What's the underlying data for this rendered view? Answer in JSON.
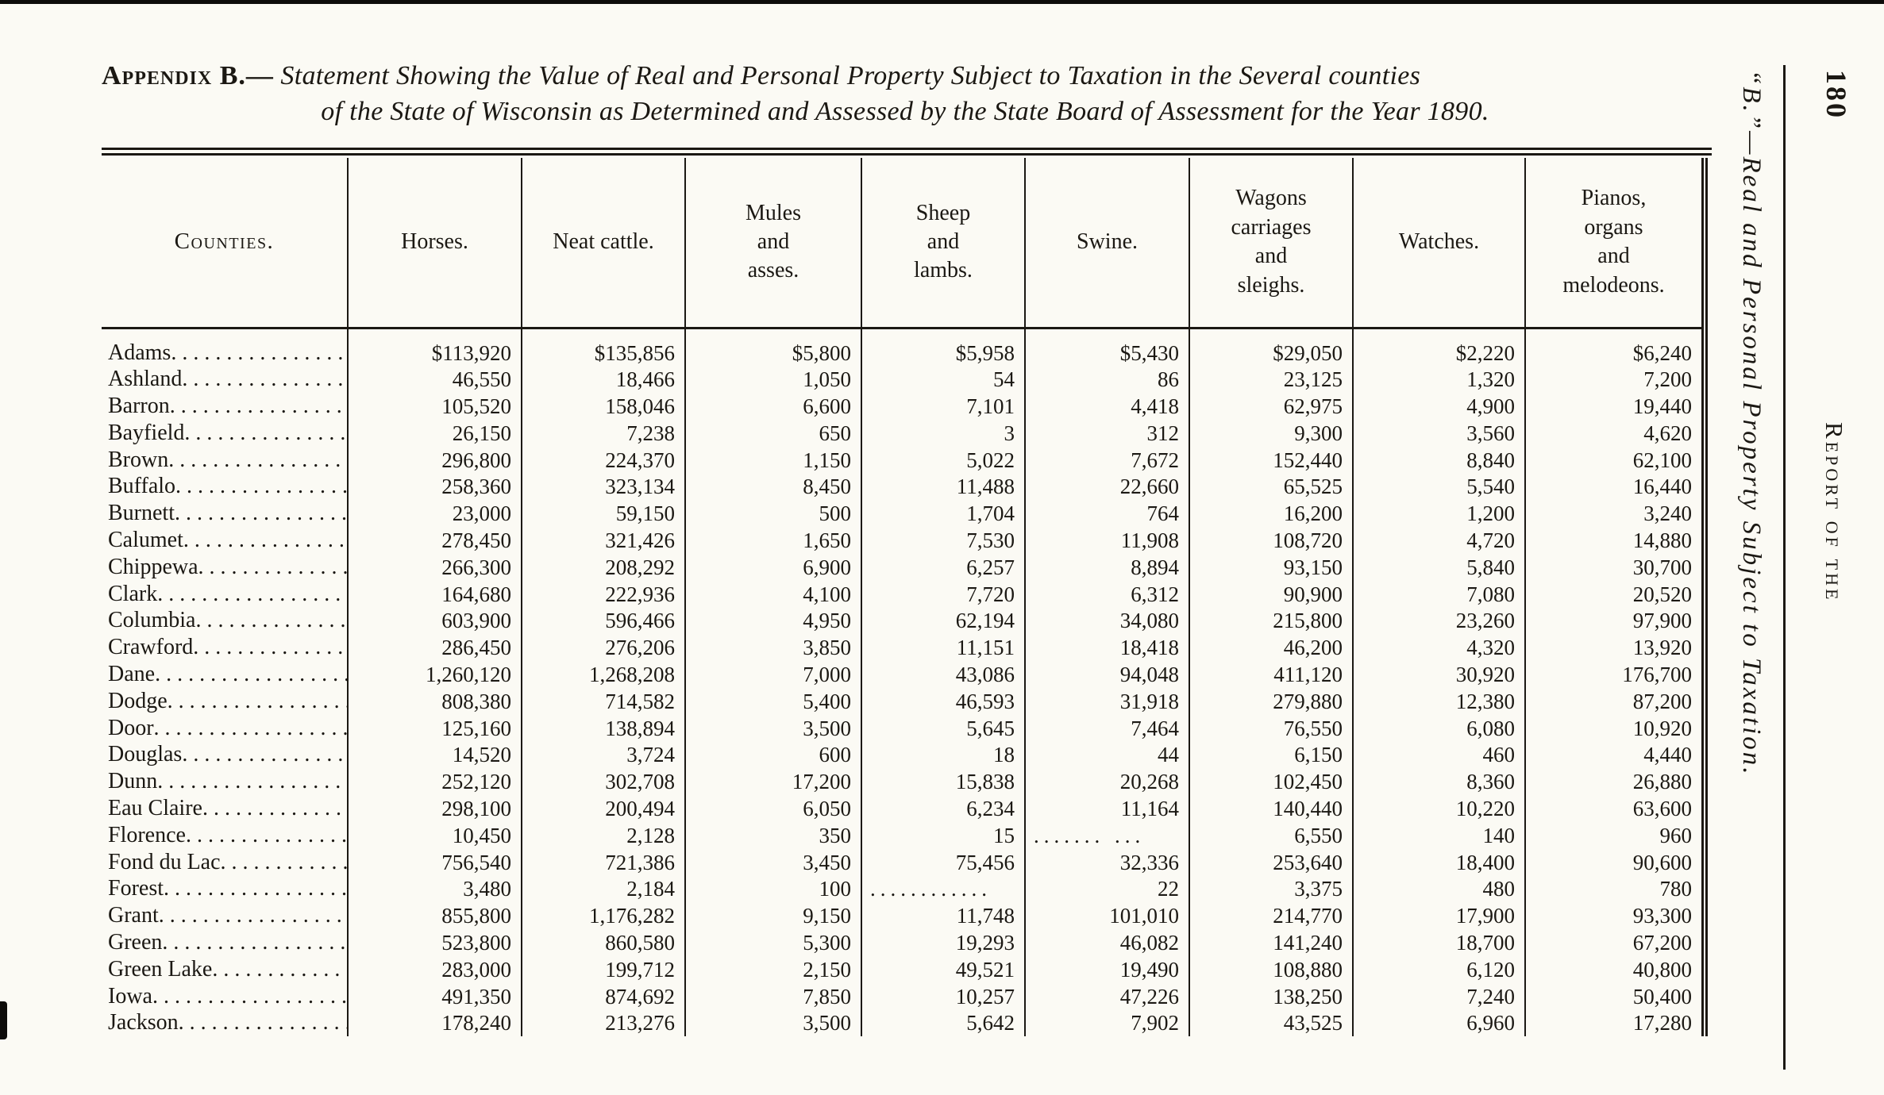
{
  "page_number": "180",
  "margins": {
    "side_title": "“B.”—Real and Personal Property Subject to Taxation.",
    "running_head": "Report of the"
  },
  "title": {
    "label": "Appendix B.—",
    "line1": "Statement Showing the Value of Real and Personal Property Subject to Taxation in the Several counties",
    "line2": "of the State of Wisconsin as Determined and Assessed by the State Board of Assessment for the Year 1890."
  },
  "table": {
    "headers": [
      "Counties.",
      "Horses.",
      "Neat cattle.",
      "Mules\nand\nasses.",
      "Sheep\nand\nlambs.",
      "Swine.",
      "Wagons\ncarriages\nand\nsleighs.",
      "Watches.",
      "Pianos,\norgans\nand\nmelodeons."
    ],
    "rows": [
      {
        "county": "Adams",
        "values": [
          "$113,920",
          "$135,856",
          "$5,800",
          "$5,958",
          "$5,430",
          "$29,050",
          "$2,220",
          "$6,240"
        ]
      },
      {
        "county": "Ashland",
        "values": [
          "46,550",
          "18,466",
          "1,050",
          "54",
          "86",
          "23,125",
          "1,320",
          "7,200"
        ]
      },
      {
        "county": "Barron",
        "values": [
          "105,520",
          "158,046",
          "6,600",
          "7,101",
          "4,418",
          "62,975",
          "4,900",
          "19,440"
        ]
      },
      {
        "county": "Bayfield",
        "values": [
          "26,150",
          "7,238",
          "650",
          "3",
          "312",
          "9,300",
          "3,560",
          "4,620"
        ]
      },
      {
        "county": "Brown",
        "values": [
          "296,800",
          "224,370",
          "1,150",
          "5,022",
          "7,672",
          "152,440",
          "8,840",
          "62,100"
        ]
      },
      {
        "county": "Buffalo",
        "values": [
          "258,360",
          "323,134",
          "8,450",
          "11,488",
          "22,660",
          "65,525",
          "5,540",
          "16,440"
        ]
      },
      {
        "county": "Burnett",
        "values": [
          "23,000",
          "59,150",
          "500",
          "1,704",
          "764",
          "16,200",
          "1,200",
          "3,240"
        ]
      },
      {
        "county": "Calumet",
        "values": [
          "278,450",
          "321,426",
          "1,650",
          "7,530",
          "11,908",
          "108,720",
          "4,720",
          "14,880"
        ]
      },
      {
        "county": "Chippewa",
        "values": [
          "266,300",
          "208,292",
          "6,900",
          "6,257",
          "8,894",
          "93,150",
          "5,840",
          "30,700"
        ]
      },
      {
        "county": "Clark",
        "values": [
          "164,680",
          "222,936",
          "4,100",
          "7,720",
          "6,312",
          "90,900",
          "7,080",
          "20,520"
        ]
      },
      {
        "county": "Columbia",
        "values": [
          "603,900",
          "596,466",
          "4,950",
          "62,194",
          "34,080",
          "215,800",
          "23,260",
          "97,900"
        ]
      },
      {
        "county": "Crawford",
        "values": [
          "286,450",
          "276,206",
          "3,850",
          "11,151",
          "18,418",
          "46,200",
          "4,320",
          "13,920"
        ]
      },
      {
        "county": "Dane",
        "values": [
          "1,260,120",
          "1,268,208",
          "7,000",
          "43,086",
          "94,048",
          "411,120",
          "30,920",
          "176,700"
        ]
      },
      {
        "county": "Dodge",
        "values": [
          "808,380",
          "714,582",
          "5,400",
          "46,593",
          "31,918",
          "279,880",
          "12,380",
          "87,200"
        ]
      },
      {
        "county": "Door",
        "values": [
          "125,160",
          "138,894",
          "3,500",
          "5,645",
          "7,464",
          "76,550",
          "6,080",
          "10,920"
        ]
      },
      {
        "county": "Douglas",
        "values": [
          "14,520",
          "3,724",
          "600",
          "18",
          "44",
          "6,150",
          "460",
          "4,440"
        ]
      },
      {
        "county": "Dunn",
        "values": [
          "252,120",
          "302,708",
          "17,200",
          "15,838",
          "20,268",
          "102,450",
          "8,360",
          "26,880"
        ]
      },
      {
        "county": "Eau Claire",
        "values": [
          "298,100",
          "200,494",
          "6,050",
          "6,234",
          "11,164",
          "140,440",
          "10,220",
          "63,600"
        ]
      },
      {
        "county": "Florence",
        "values": [
          "10,450",
          "2,128",
          "350",
          "15",
          "....... ...",
          "6,550",
          "140",
          "960"
        ]
      },
      {
        "county": "Fond du Lac",
        "values": [
          "756,540",
          "721,386",
          "3,450",
          "75,456",
          "32,336",
          "253,640",
          "18,400",
          "90,600"
        ]
      },
      {
        "county": "Forest",
        "values": [
          "3,480",
          "2,184",
          "100",
          "............",
          "22",
          "3,375",
          "480",
          "780"
        ]
      },
      {
        "county": "Grant",
        "values": [
          "855,800",
          "1,176,282",
          "9,150",
          "11,748",
          "101,010",
          "214,770",
          "17,900",
          "93,300"
        ]
      },
      {
        "county": "Green",
        "values": [
          "523,800",
          "860,580",
          "5,300",
          "19,293",
          "46,082",
          "141,240",
          "18,700",
          "67,200"
        ]
      },
      {
        "county": "Green Lake",
        "values": [
          "283,000",
          "199,712",
          "2,150",
          "49,521",
          "19,490",
          "108,880",
          "6,120",
          "40,800"
        ]
      },
      {
        "county": "Iowa",
        "values": [
          "491,350",
          "874,692",
          "7,850",
          "10,257",
          "47,226",
          "138,250",
          "7,240",
          "50,400"
        ]
      },
      {
        "county": "Jackson",
        "values": [
          "178,240",
          "213,276",
          "3,500",
          "5,642",
          "7,902",
          "43,525",
          "6,960",
          "17,280"
        ]
      }
    ]
  }
}
